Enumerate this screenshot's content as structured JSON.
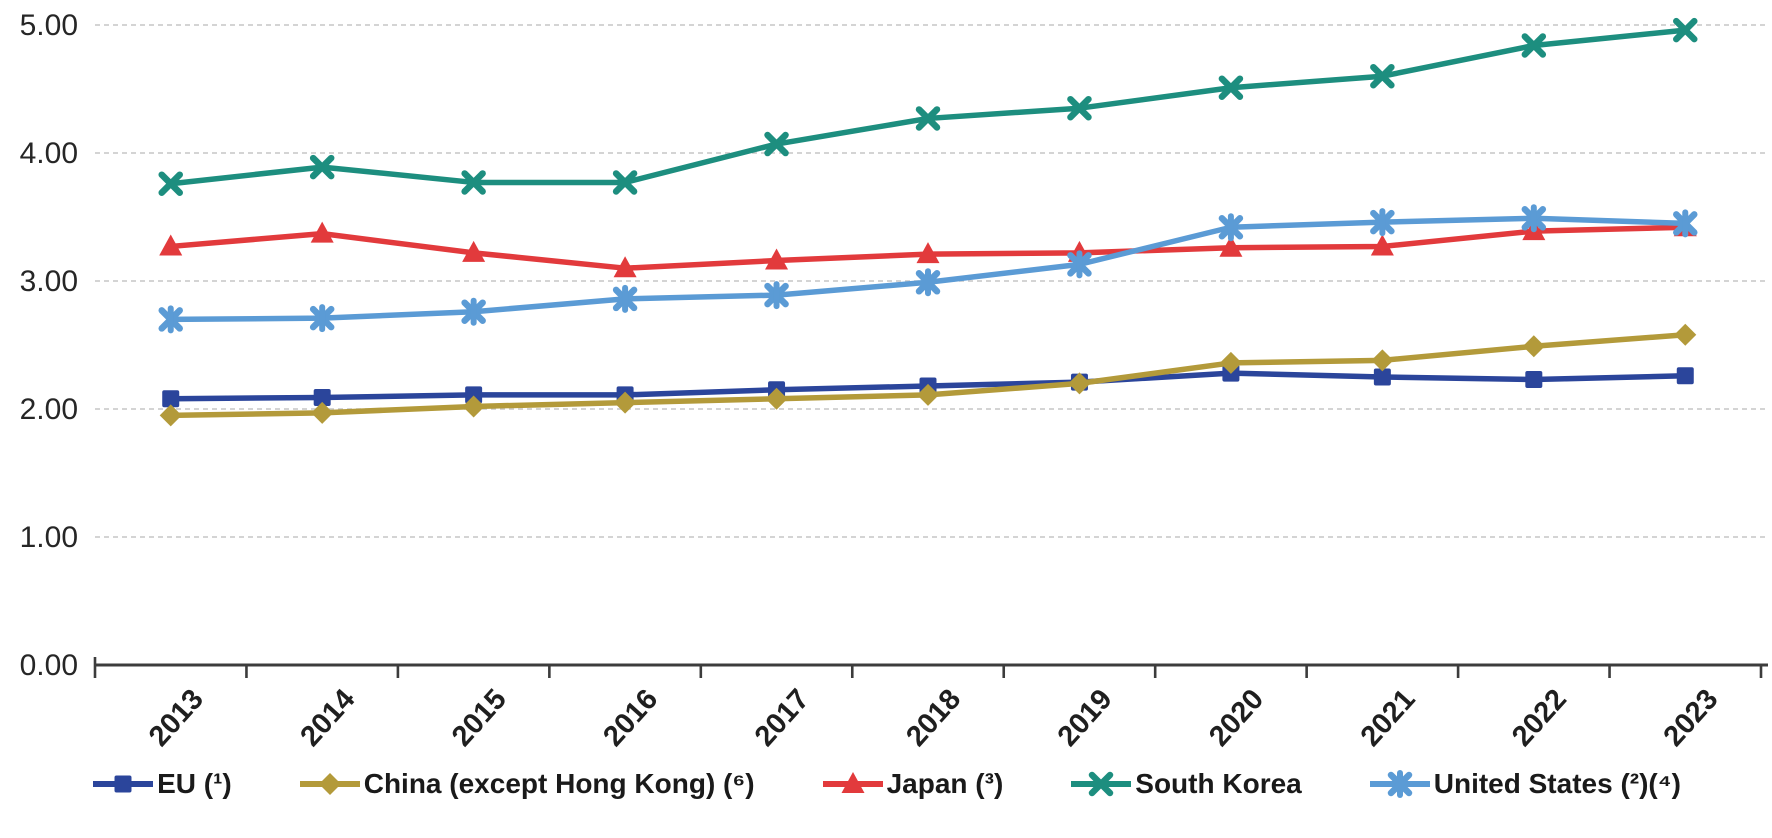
{
  "chart_data": {
    "type": "line",
    "title": "",
    "categories": [
      "2013",
      "2014",
      "2015",
      "2016",
      "2017",
      "2018",
      "2019",
      "2020",
      "2021",
      "2022",
      "2023"
    ],
    "ylim": [
      0,
      5
    ],
    "yticks": [
      {
        "value": 0,
        "label": "0.00"
      },
      {
        "value": 1,
        "label": "1.00"
      },
      {
        "value": 2,
        "label": "2.00"
      },
      {
        "value": 3,
        "label": "3.00"
      },
      {
        "value": 4,
        "label": "4.00"
      },
      {
        "value": 5,
        "label": "5.00"
      }
    ],
    "grid": "horizontal dashed gridlines on, vertical off",
    "legend_position": "bottom",
    "x_label_rotation_deg": -48,
    "series": [
      {
        "name": "EU (¹)",
        "marker": "square",
        "color": "#2b459b",
        "values": [
          2.08,
          2.09,
          2.11,
          2.11,
          2.15,
          2.18,
          2.21,
          2.28,
          2.25,
          2.23,
          2.26
        ]
      },
      {
        "name": "China (except Hong Kong) (⁶)",
        "marker": "diamond",
        "color": "#b39a3a",
        "values": [
          1.95,
          1.97,
          2.02,
          2.05,
          2.08,
          2.11,
          2.2,
          2.36,
          2.38,
          2.49,
          2.58
        ]
      },
      {
        "name": "Japan (³)",
        "marker": "triangle",
        "color": "#e23a3c",
        "values": [
          3.27,
          3.37,
          3.22,
          3.1,
          3.16,
          3.21,
          3.22,
          3.26,
          3.27,
          3.39,
          3.42
        ]
      },
      {
        "name": "South Korea",
        "marker": "x",
        "color": "#1d8e7f",
        "values": [
          3.76,
          3.89,
          3.77,
          3.77,
          4.07,
          4.27,
          4.35,
          4.51,
          4.6,
          4.84,
          4.96
        ]
      },
      {
        "name": "United States (²)(⁴)",
        "marker": "asterisk",
        "color": "#5b9bd5",
        "values": [
          2.7,
          2.71,
          2.76,
          2.86,
          2.89,
          2.99,
          3.13,
          3.42,
          3.46,
          3.49,
          3.45
        ]
      }
    ],
    "style": {
      "gridline_color": "#c6c6c6",
      "axis_color": "#3c3c3c",
      "background": "#ffffff"
    }
  }
}
